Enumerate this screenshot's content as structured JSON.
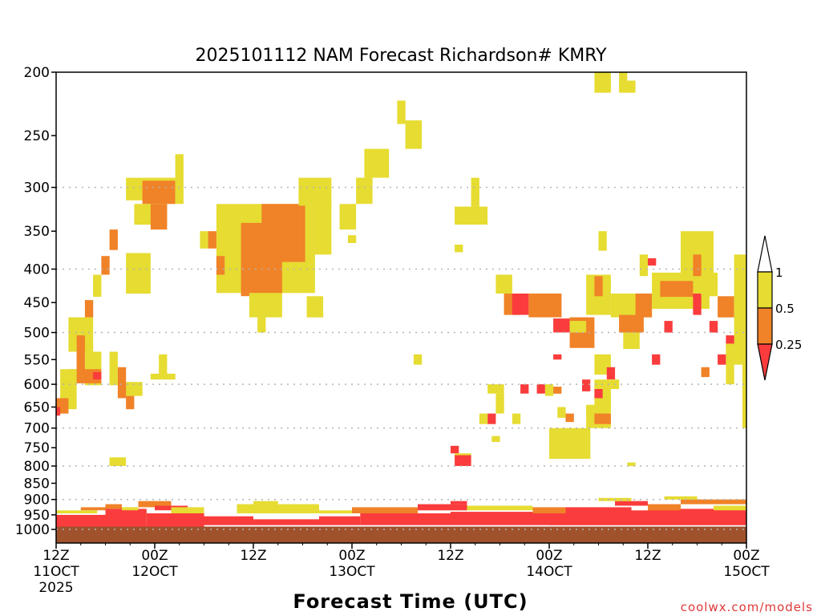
{
  "chart_data": {
    "type": "heatmap",
    "title": "2025101112 NAM Forecast Richardson# KMRY",
    "xlabel": "Forecast Time (UTC)",
    "ylabel": "",
    "x_units": "forecast hours from 12Z 11 Oct 2025",
    "xlim": [
      0,
      84
    ],
    "ylim": [
      200,
      1049
    ],
    "y_scale": "log-pressure (hPa), inverted",
    "y_ticks": [
      200,
      250,
      300,
      350,
      400,
      450,
      500,
      550,
      600,
      650,
      700,
      750,
      800,
      850,
      900,
      950,
      1000
    ],
    "y_grid": [
      300,
      400,
      500,
      600,
      700,
      800,
      900,
      1000
    ],
    "x_ticks": [
      {
        "hour": 0,
        "lines": [
          "12Z",
          "11OCT",
          "2025"
        ]
      },
      {
        "hour": 12,
        "lines": [
          "00Z",
          "12OCT"
        ]
      },
      {
        "hour": 24,
        "lines": [
          "12Z"
        ]
      },
      {
        "hour": 36,
        "lines": [
          "00Z",
          "13OCT"
        ]
      },
      {
        "hour": 48,
        "lines": [
          "12Z"
        ]
      },
      {
        "hour": 60,
        "lines": [
          "00Z",
          "14OCT"
        ]
      },
      {
        "hour": 72,
        "lines": [
          "12Z"
        ]
      },
      {
        "hour": 84,
        "lines": [
          "00Z",
          "15OCT"
        ]
      }
    ],
    "categories": [
      {
        "name": "< 0.25",
        "color": "#fa3c3c"
      },
      {
        "name": "0.25 - 0.5",
        "color": "#f08228"
      },
      {
        "name": "0.5 - 1",
        "color": "#e6dc32"
      }
    ],
    "legend": {
      "labels": [
        "1",
        "0.5",
        "0.25"
      ],
      "placement": "right"
    },
    "ground": {
      "p_top": 990,
      "p_bottom": 1049,
      "color": "#a0522d"
    },
    "cell_format": "[hour_start, hour_end, p_top_hPa, p_bottom_hPa, category_index]",
    "cells": [
      [
        8.5,
        14.5,
        290,
        314,
        2
      ],
      [
        10.5,
        14.5,
        293,
        318,
        1
      ],
      [
        9.5,
        13.5,
        318,
        342,
        2
      ],
      [
        11.5,
        13.5,
        318,
        348,
        1
      ],
      [
        14.5,
        15.5,
        267,
        318,
        2
      ],
      [
        8.5,
        11.5,
        378,
        436,
        2
      ],
      [
        6.5,
        7.5,
        348,
        374,
        1
      ],
      [
        5.5,
        6.5,
        382,
        408,
        1
      ],
      [
        4.5,
        5.5,
        408,
        441,
        2
      ],
      [
        3.5,
        4.5,
        446,
        474,
        1
      ],
      [
        1.5,
        4.5,
        474,
        535,
        2
      ],
      [
        3.5,
        5.5,
        535,
        602,
        2
      ],
      [
        6.5,
        7.5,
        535,
        602,
        2
      ],
      [
        1.5,
        5.5,
        569,
        598,
        1
      ],
      [
        2.5,
        3.5,
        505,
        580,
        1
      ],
      [
        4.5,
        5.5,
        575,
        590,
        0
      ],
      [
        0.5,
        2.5,
        569,
        655,
        2
      ],
      [
        0,
        1.5,
        630,
        665,
        1
      ],
      [
        7.5,
        10.5,
        595,
        625,
        2
      ],
      [
        7.5,
        8.5,
        565,
        630,
        1
      ],
      [
        8.5,
        9.5,
        625,
        655,
        1
      ],
      [
        12.5,
        13.5,
        540,
        585,
        2
      ],
      [
        11.5,
        14.5,
        578,
        590,
        2
      ],
      [
        6.5,
        8.5,
        776,
        800,
        2
      ],
      [
        0,
        0.5,
        650,
        670,
        0
      ],
      [
        19.5,
        31.5,
        318,
        435,
        2
      ],
      [
        25,
        30.3,
        318,
        390,
        1
      ],
      [
        22.5,
        30,
        340,
        390,
        1
      ],
      [
        22.5,
        27.5,
        390,
        440,
        1
      ],
      [
        23.5,
        27.5,
        435,
        474,
        2
      ],
      [
        24.5,
        25.5,
        474,
        500,
        2
      ],
      [
        29.5,
        33.5,
        290,
        320,
        2
      ],
      [
        31.5,
        33.5,
        318,
        380,
        2
      ],
      [
        17.5,
        18.5,
        350,
        372,
        2
      ],
      [
        18.5,
        19.5,
        350,
        372,
        1
      ],
      [
        19.5,
        20.5,
        382,
        408,
        1
      ],
      [
        30.5,
        32.5,
        440,
        474,
        2
      ],
      [
        34.5,
        36.5,
        318,
        348,
        2
      ],
      [
        36.5,
        38.5,
        290,
        318,
        2
      ],
      [
        37.5,
        40.5,
        262,
        290,
        2
      ],
      [
        41.5,
        42.5,
        221,
        240,
        2
      ],
      [
        42.5,
        44.5,
        237,
        262,
        2
      ],
      [
        43.5,
        44.5,
        540,
        560,
        2
      ],
      [
        35.5,
        36.5,
        355,
        365,
        2
      ],
      [
        48.5,
        52.5,
        321,
        342,
        2
      ],
      [
        50.5,
        51.5,
        290,
        321,
        2
      ],
      [
        48.5,
        49.5,
        367,
        377,
        2
      ],
      [
        53.5,
        55.5,
        408,
        436,
        2
      ],
      [
        54.5,
        56.5,
        436,
        470,
        1
      ],
      [
        55.5,
        57.5,
        436,
        470,
        0
      ],
      [
        57.5,
        61.5,
        436,
        474,
        1
      ],
      [
        60.5,
        62.5,
        476,
        500,
        0
      ],
      [
        62.5,
        65.5,
        474,
        528,
        1
      ],
      [
        62.5,
        64.5,
        480,
        500,
        2
      ],
      [
        64.5,
        67.5,
        408,
        470,
        2
      ],
      [
        65.5,
        66.5,
        410,
        440,
        1
      ],
      [
        67.5,
        72.5,
        436,
        474,
        2
      ],
      [
        70.5,
        72.5,
        436,
        474,
        1
      ],
      [
        68.5,
        71.5,
        470,
        500,
        1
      ],
      [
        69,
        71,
        500,
        530,
        2
      ],
      [
        72.5,
        79.5,
        405,
        460,
        2
      ],
      [
        73.5,
        77.5,
        417,
        441,
        1
      ],
      [
        77.5,
        78.5,
        436,
        470,
        0
      ],
      [
        76,
        80,
        350,
        410,
        2
      ],
      [
        77.5,
        78.5,
        380,
        410,
        1
      ],
      [
        78.5,
        80.5,
        405,
        440,
        2
      ],
      [
        80.5,
        82.5,
        440,
        474,
        1
      ],
      [
        82.5,
        83.5,
        380,
        560,
        2
      ],
      [
        83.5,
        84,
        380,
        700,
        2
      ],
      [
        79.5,
        80.5,
        480,
        500,
        0
      ],
      [
        81.5,
        82.5,
        505,
        525,
        0
      ],
      [
        74,
        75,
        480,
        500,
        0
      ],
      [
        72.5,
        73.5,
        540,
        560,
        0
      ],
      [
        78.5,
        79.5,
        565,
        585,
        1
      ],
      [
        80.5,
        81.5,
        540,
        560,
        0
      ],
      [
        81.5,
        82.5,
        520,
        600,
        2
      ],
      [
        65.5,
        67.5,
        540,
        580,
        2
      ],
      [
        67,
        68,
        565,
        590,
        0
      ],
      [
        67.5,
        68.5,
        590,
        610,
        2
      ],
      [
        60.5,
        61.5,
        540,
        550,
        0
      ],
      [
        64,
        65,
        590,
        615,
        0
      ],
      [
        65.5,
        67.5,
        590,
        660,
        2
      ],
      [
        65.5,
        66.5,
        610,
        630,
        0
      ],
      [
        64.5,
        67.5,
        645,
        700,
        2
      ],
      [
        65.5,
        67.5,
        665,
        690,
        1
      ],
      [
        61,
        62,
        650,
        675,
        2
      ],
      [
        62,
        63,
        665,
        685,
        1
      ],
      [
        64.5,
        65.5,
        650,
        665,
        2
      ],
      [
        60,
        65,
        700,
        780,
        2
      ],
      [
        61.5,
        63.5,
        740,
        780,
        2
      ],
      [
        52.5,
        53.5,
        665,
        690,
        0
      ],
      [
        51.5,
        52.5,
        665,
        690,
        2
      ],
      [
        48,
        49,
        745,
        765,
        0
      ],
      [
        48.5,
        50.5,
        765,
        790,
        2
      ],
      [
        48.5,
        50.5,
        770,
        800,
        0
      ],
      [
        52.5,
        54.5,
        600,
        620,
        2
      ],
      [
        53.5,
        54.5,
        620,
        665,
        2
      ],
      [
        55.5,
        56.5,
        665,
        690,
        2
      ],
      [
        56.5,
        57.5,
        600,
        620,
        0
      ],
      [
        58.5,
        59.5,
        600,
        620,
        0
      ],
      [
        59.5,
        60.5,
        600,
        625,
        2
      ],
      [
        60.5,
        61.5,
        605,
        620,
        1
      ],
      [
        53,
        54,
        720,
        735,
        2
      ],
      [
        69.5,
        70.5,
        790,
        800,
        2
      ],
      [
        65.5,
        67.5,
        200,
        215,
        2
      ],
      [
        68.5,
        69.5,
        200,
        206,
        2
      ],
      [
        68.5,
        70.5,
        206,
        215,
        2
      ],
      [
        71,
        72,
        380,
        410,
        2
      ],
      [
        72,
        73,
        385,
        395,
        0
      ],
      [
        66,
        67,
        350,
        375,
        2
      ],
      [
        0,
        6,
        950,
        990,
        0
      ],
      [
        6,
        11,
        930,
        990,
        0
      ],
      [
        11,
        18,
        945,
        990,
        0
      ],
      [
        18,
        24,
        955,
        985,
        0
      ],
      [
        24,
        32,
        965,
        985,
        0
      ],
      [
        32,
        37,
        955,
        985,
        0
      ],
      [
        37,
        48,
        945,
        985,
        0
      ],
      [
        48,
        60,
        940,
        985,
        0
      ],
      [
        60,
        72,
        935,
        985,
        0
      ],
      [
        72,
        84,
        930,
        985,
        0
      ],
      [
        6,
        8,
        915,
        930,
        1
      ],
      [
        8,
        10,
        925,
        935,
        2
      ],
      [
        10,
        14,
        905,
        925,
        1
      ],
      [
        12,
        16,
        920,
        935,
        0
      ],
      [
        14,
        18,
        925,
        945,
        2
      ],
      [
        0,
        5,
        935,
        945,
        2
      ],
      [
        3,
        6,
        925,
        935,
        1
      ],
      [
        22,
        32,
        915,
        945,
        2
      ],
      [
        24,
        27,
        905,
        915,
        2
      ],
      [
        32,
        36,
        935,
        945,
        2
      ],
      [
        36,
        44,
        925,
        945,
        1
      ],
      [
        44,
        50,
        915,
        935,
        0
      ],
      [
        48,
        50,
        905,
        915,
        0
      ],
      [
        50,
        58,
        920,
        935,
        2
      ],
      [
        58,
        62,
        925,
        945,
        1
      ],
      [
        62,
        70,
        925,
        940,
        0
      ],
      [
        68,
        72,
        905,
        920,
        0
      ],
      [
        72,
        76,
        915,
        935,
        1
      ],
      [
        76,
        84,
        900,
        915,
        1
      ],
      [
        80,
        84,
        920,
        935,
        2
      ],
      [
        66,
        70,
        895,
        905,
        2
      ],
      [
        74,
        78,
        890,
        900,
        2
      ]
    ]
  },
  "watermark": "coolwx.com/models"
}
